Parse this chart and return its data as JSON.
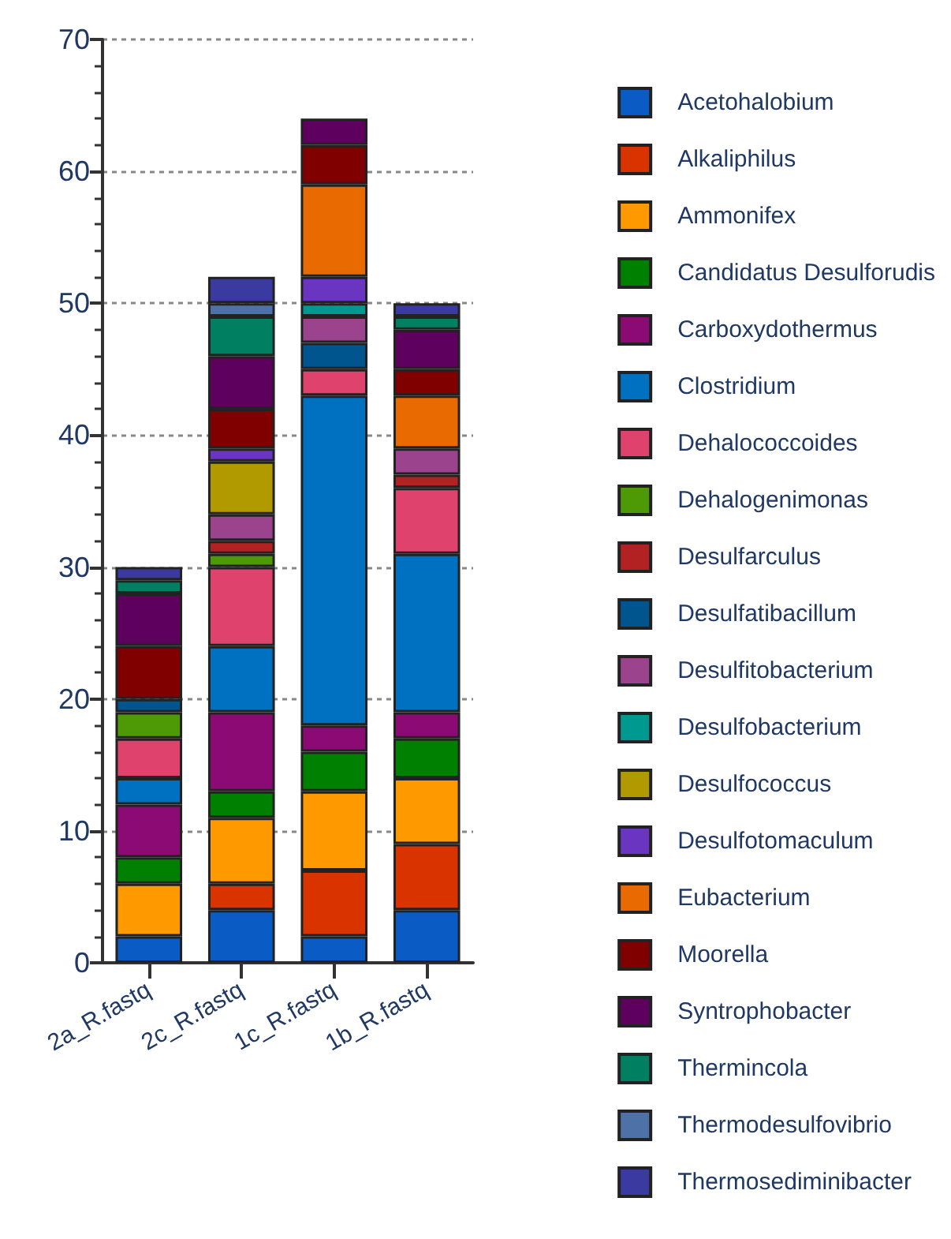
{
  "chart_data": {
    "type": "bar",
    "stacked": true,
    "categories": [
      "2a_R.fastq",
      "2c_R.fastq",
      "1c_R.fastq",
      "1b_R.fastq"
    ],
    "series": [
      {
        "name": "Acetohalobium",
        "color": "#0a5cc4",
        "values": [
          2,
          4,
          2,
          4
        ]
      },
      {
        "name": "Alkaliphilus",
        "color": "#d93300",
        "values": [
          0,
          2,
          5,
          5
        ]
      },
      {
        "name": "Ammonifex",
        "color": "#ff9900",
        "values": [
          4,
          5,
          6,
          5
        ]
      },
      {
        "name": "Candidatus Desulforudis",
        "color": "#008000",
        "values": [
          2,
          2,
          3,
          3
        ]
      },
      {
        "name": "Carboxydothermus",
        "color": "#8b0a74",
        "values": [
          4,
          6,
          2,
          2
        ]
      },
      {
        "name": "Clostridium",
        "color": "#0070c0",
        "values": [
          2,
          5,
          25,
          12
        ]
      },
      {
        "name": "Dehalococcoides",
        "color": "#e0426e",
        "values": [
          3,
          6,
          2,
          5
        ]
      },
      {
        "name": "Dehalogenimonas",
        "color": "#4e9a06",
        "values": [
          2,
          1,
          0,
          0
        ]
      },
      {
        "name": "Desulfarculus",
        "color": "#b22222",
        "values": [
          0,
          1,
          0,
          1
        ]
      },
      {
        "name": "Desulfatibacillum",
        "color": "#00558f",
        "values": [
          1,
          0,
          2,
          0
        ]
      },
      {
        "name": "Desulfitobacterium",
        "color": "#9b438c",
        "values": [
          0,
          2,
          2,
          2
        ]
      },
      {
        "name": "Desulfobacterium",
        "color": "#009990",
        "values": [
          0,
          0,
          1,
          0
        ]
      },
      {
        "name": "Desulfococcus",
        "color": "#b09a00",
        "values": [
          0,
          4,
          0,
          0
        ]
      },
      {
        "name": "Desulfotomaculum",
        "color": "#6a35c0",
        "values": [
          0,
          1,
          2,
          0
        ]
      },
      {
        "name": "Eubacterium",
        "color": "#e86a00",
        "values": [
          0,
          0,
          7,
          4
        ]
      },
      {
        "name": "Moorella",
        "color": "#800000",
        "values": [
          4,
          3,
          3,
          2
        ]
      },
      {
        "name": "Syntrophobacter",
        "color": "#5e005e",
        "values": [
          4,
          4,
          2,
          3
        ]
      },
      {
        "name": "Thermincola",
        "color": "#008060",
        "values": [
          1,
          3,
          0,
          1
        ]
      },
      {
        "name": "Thermodesulfovibrio",
        "color": "#4e72a8",
        "values": [
          0,
          1,
          0,
          0
        ]
      },
      {
        "name": "Thermosediminibacter",
        "color": "#3a3aa0",
        "values": [
          1,
          2,
          0,
          1
        ]
      }
    ],
    "ylim": [
      0,
      70
    ],
    "yticks": [
      0,
      10,
      20,
      30,
      40,
      50,
      60,
      70
    ],
    "grid": "y",
    "legend": "right"
  }
}
